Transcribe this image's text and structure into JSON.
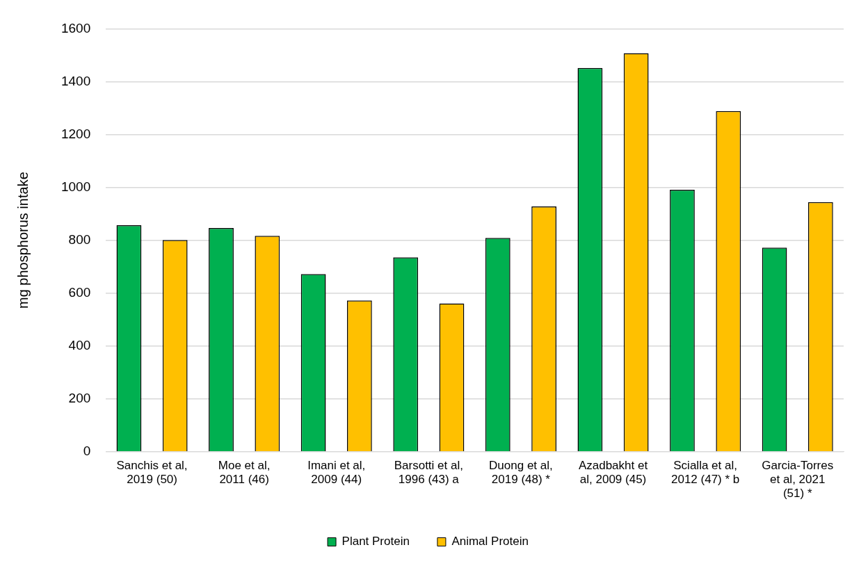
{
  "chart_data": {
    "type": "bar",
    "ylabel": "mg phosphorus intake",
    "categories": [
      "Sanchis et al, 2019 (50)",
      "Moe et al, 2011 (46)",
      "Imani et al, 2009 (44)",
      "Barsotti et al, 1996 (43)  a",
      "Duong et al, 2019 (48) *",
      "Azadbakht et al, 2009 (45)",
      "Scialla et al, 2012 (47) * b",
      "Garcia-Torres et al, 2021 (51) *"
    ],
    "series": [
      {
        "name": "Plant Protein",
        "color": "#00b050",
        "values": [
          857,
          846,
          672,
          735,
          809,
          1452,
          991,
          772
        ]
      },
      {
        "name": "Animal Protein",
        "color": "#ffc000",
        "values": [
          801,
          817,
          572,
          561,
          928,
          1508,
          1289,
          944
        ]
      }
    ],
    "ylim": [
      0,
      1600
    ],
    "yticks": [
      0,
      200,
      400,
      600,
      800,
      1000,
      1200,
      1400,
      1600
    ],
    "grid": "y",
    "legend": "bottom"
  }
}
